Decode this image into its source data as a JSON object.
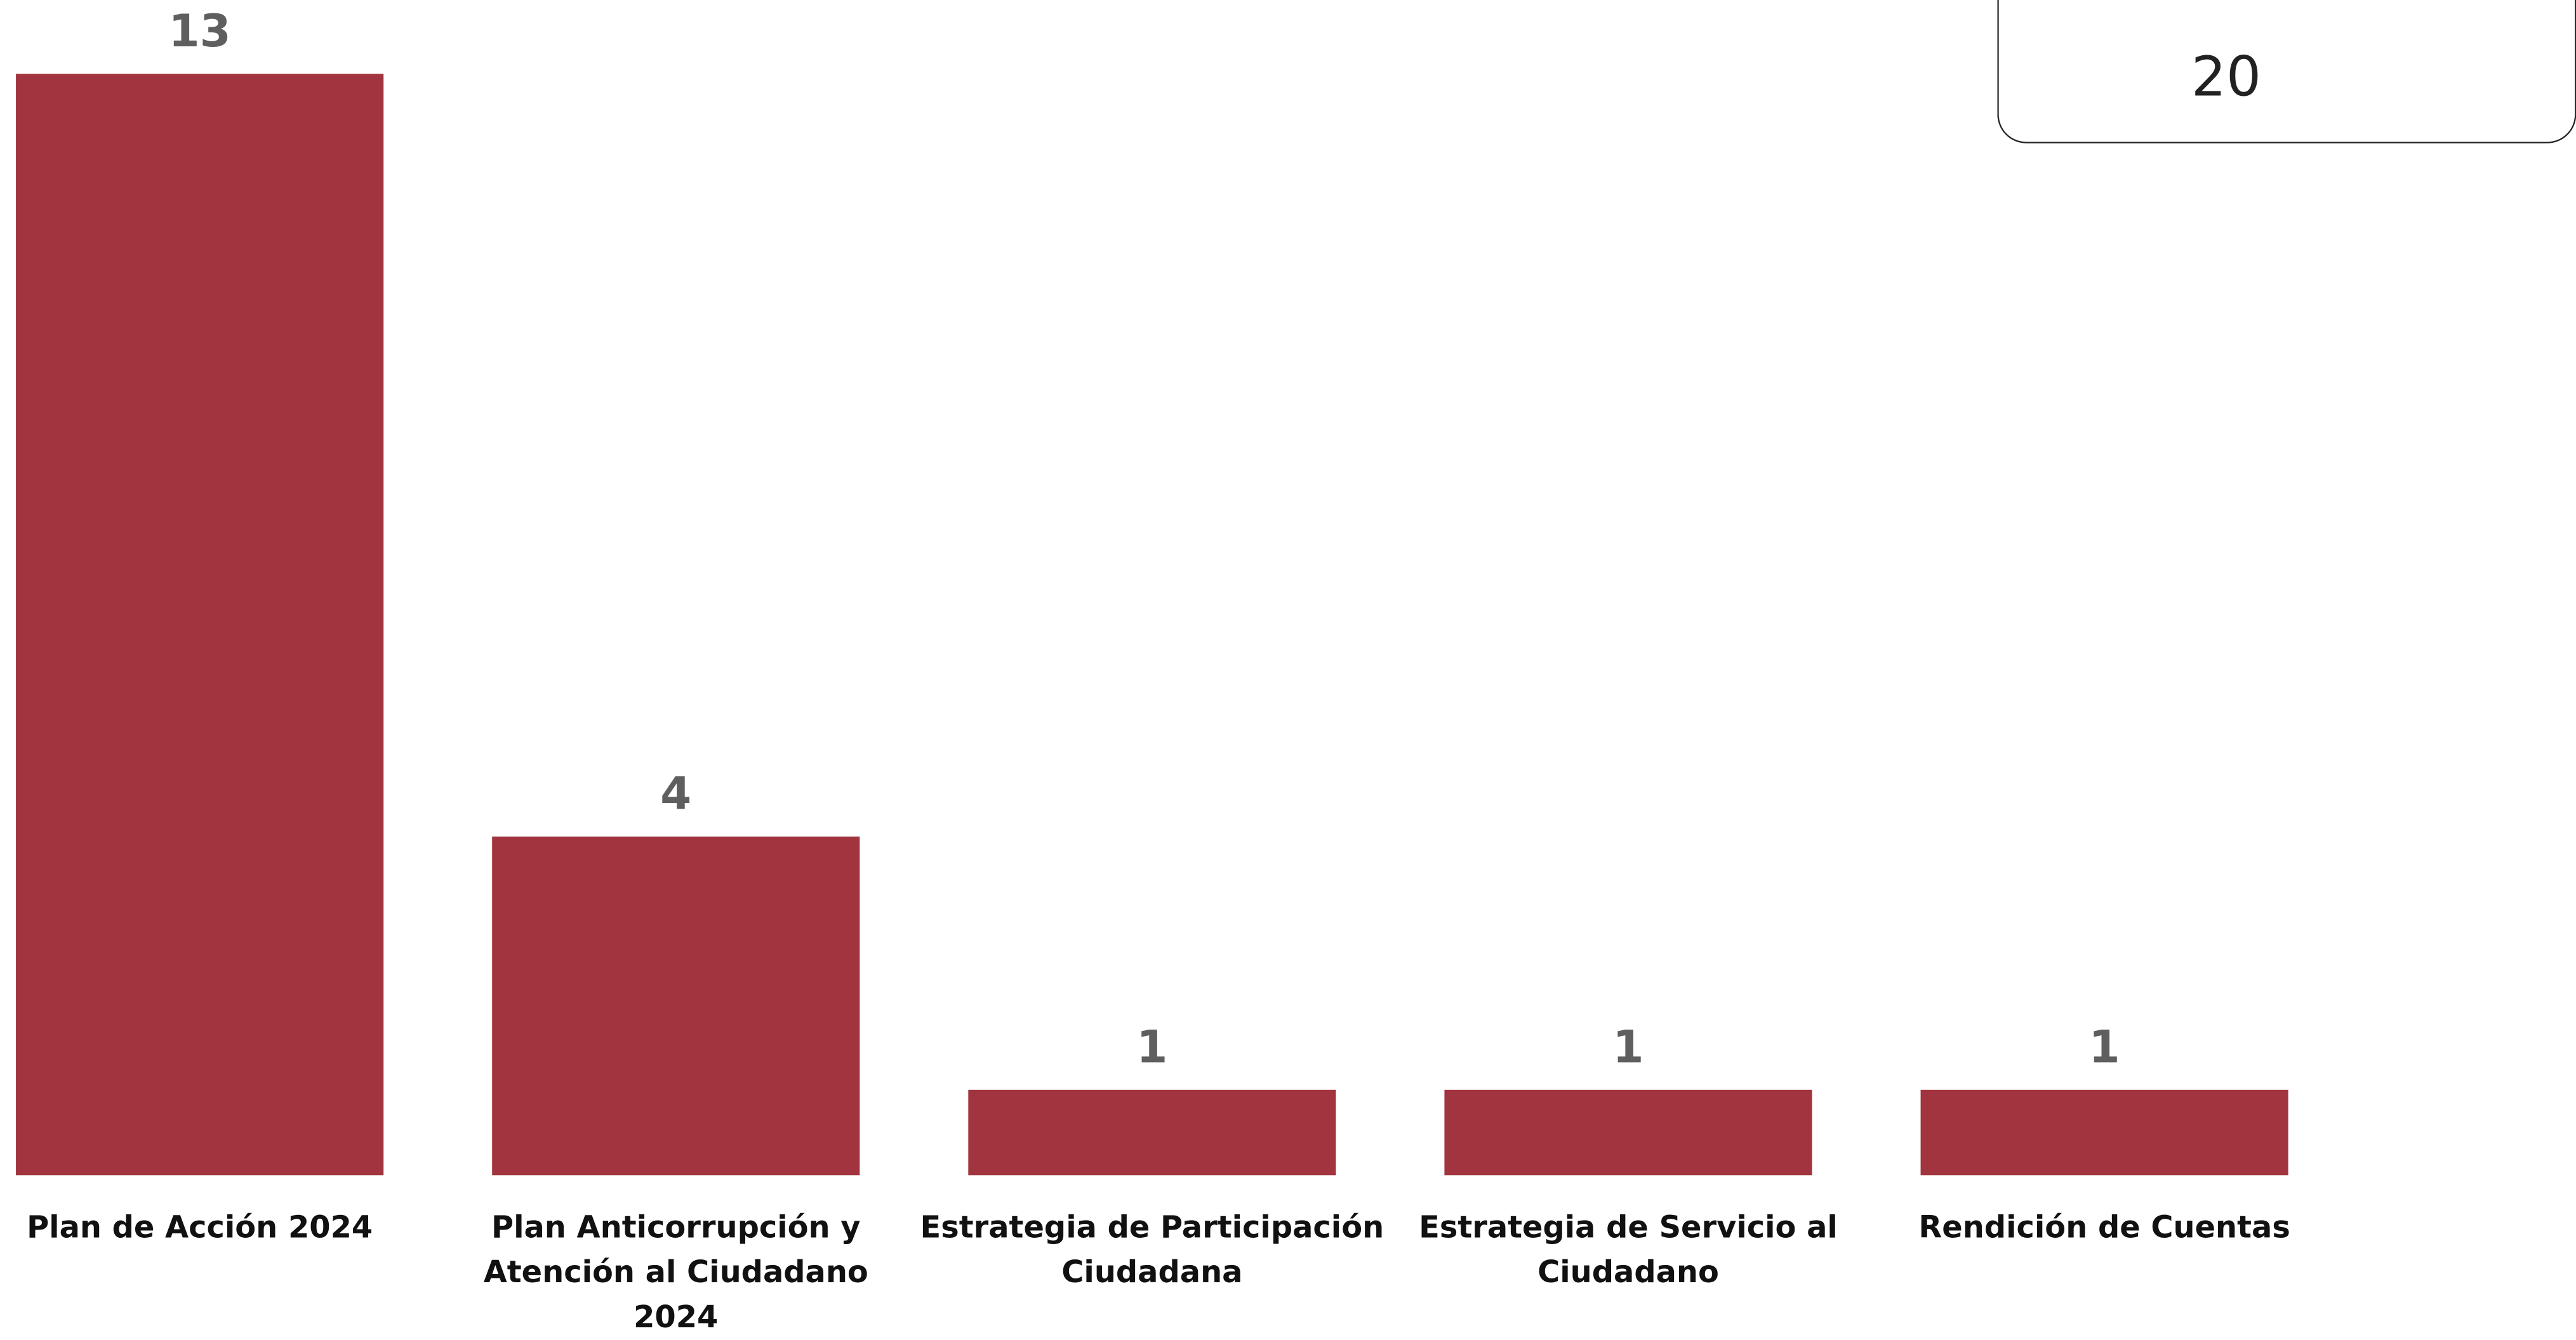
{
  "chart_data": {
    "type": "bar",
    "categories": [
      "Plan de Acción 2024",
      "Plan Anticorrupción y\nAtención al Ciudadano 2024",
      "Estrategia de Participación\nCiudadana",
      "Estrategia de Servicio al\nCiudadano",
      "Rendición de Cuentas"
    ],
    "values": [
      13,
      4,
      1,
      1,
      1
    ],
    "color": "#a1343e",
    "total": 20
  }
}
